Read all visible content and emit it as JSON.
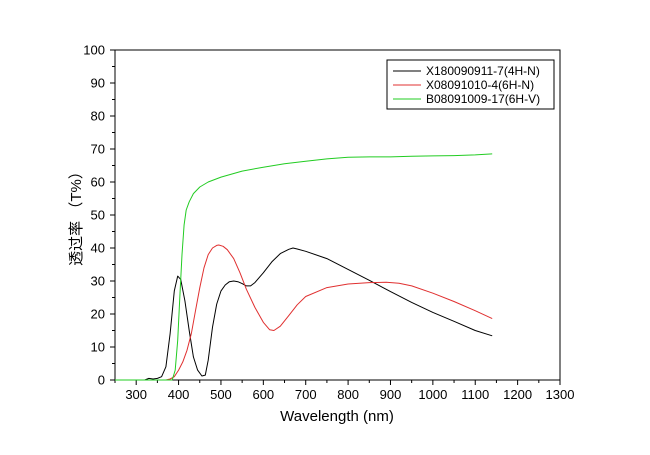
{
  "chart_data": {
    "type": "line",
    "xlabel": "Wavelength (nm)",
    "ylabel": "透过率  （T%）",
    "xlim": [
      250,
      1300
    ],
    "ylim": [
      0,
      100
    ],
    "x_ticks": [
      300,
      400,
      500,
      600,
      700,
      800,
      900,
      1000,
      1100,
      1200,
      1300
    ],
    "y_ticks": [
      0,
      10,
      20,
      30,
      40,
      50,
      60,
      70,
      80,
      90,
      100
    ],
    "grid": false,
    "legend_position": "top-right",
    "series": [
      {
        "name": "X180090911-7(4H-N)",
        "color": "#000000",
        "x": [
          250,
          320,
          330,
          340,
          350,
          360,
          370,
          380,
          390,
          398,
          405,
          415,
          425,
          435,
          445,
          455,
          463,
          470,
          480,
          490,
          500,
          510,
          520,
          530,
          540,
          550,
          560,
          570,
          580,
          600,
          620,
          640,
          660,
          670,
          680,
          700,
          750,
          800,
          850,
          900,
          950,
          1000,
          1050,
          1100,
          1140
        ],
        "values": [
          0,
          0,
          0.5,
          0.3,
          0.5,
          1,
          4,
          14,
          27,
          31.5,
          30.5,
          24,
          15,
          7,
          3,
          1.2,
          1.5,
          6,
          16,
          23,
          27,
          28.8,
          29.8,
          30,
          29.8,
          29.2,
          28.5,
          28.5,
          29.5,
          32.5,
          35.8,
          38.3,
          39.6,
          40,
          39.7,
          39,
          36.8,
          33.5,
          30.2,
          26.8,
          23.5,
          20.5,
          17.8,
          15,
          13.4
        ]
      },
      {
        "name": "X08091010-4(6H-N)",
        "color": "#e03030",
        "x": [
          250,
          370,
          380,
          390,
          400,
          410,
          420,
          430,
          440,
          450,
          460,
          470,
          480,
          490,
          495,
          505,
          515,
          530,
          545,
          560,
          580,
          600,
          615,
          625,
          640,
          660,
          680,
          700,
          750,
          800,
          850,
          890,
          920,
          950,
          1000,
          1050,
          1100,
          1140
        ],
        "values": [
          0,
          0,
          0.3,
          1,
          3,
          5.5,
          9,
          14,
          21,
          28,
          34,
          38,
          40,
          40.8,
          40.9,
          40.5,
          39.5,
          36.8,
          32.5,
          27.5,
          22,
          17.5,
          15.2,
          15,
          16.3,
          19.5,
          22.8,
          25.3,
          28,
          29.1,
          29.5,
          29.6,
          29.3,
          28.5,
          26.3,
          23.8,
          21,
          18.6
        ]
      },
      {
        "name": "B08091009-17(6H-V)",
        "color": "#22cc22",
        "x": [
          250,
          385,
          392,
          398,
          403,
          408,
          413,
          418,
          425,
          435,
          450,
          470,
          500,
          550,
          600,
          650,
          700,
          750,
          800,
          850,
          900,
          950,
          1000,
          1050,
          1100,
          1140
        ],
        "values": [
          0,
          0,
          3,
          12,
          25,
          38,
          47,
          51.5,
          54,
          56.5,
          58.5,
          60,
          61.5,
          63.3,
          64.5,
          65.5,
          66.3,
          67,
          67.5,
          67.6,
          67.6,
          67.8,
          67.9,
          68,
          68.2,
          68.5
        ]
      }
    ]
  }
}
